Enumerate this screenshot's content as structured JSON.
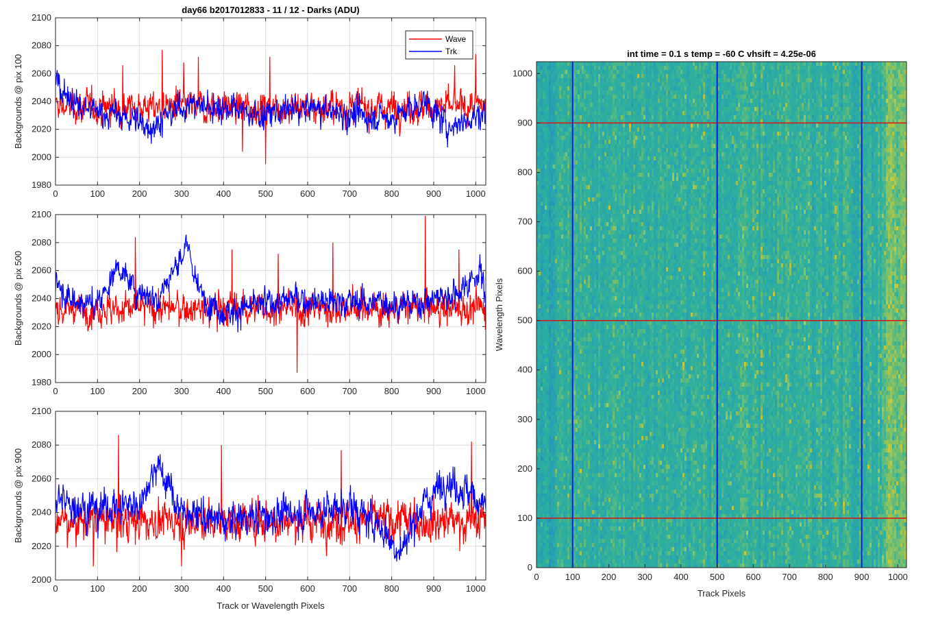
{
  "chart_data": [
    {
      "type": "line",
      "title": "day66 b2017012833 - 11 / 12 - Darks (ADU)",
      "xlabel": "",
      "ylabel": "Backgrounds @ pix 100",
      "xlim": [
        0,
        1024
      ],
      "ylim": [
        1980,
        2100
      ],
      "xticks": [
        0,
        100,
        200,
        300,
        400,
        500,
        600,
        700,
        800,
        900,
        1000
      ],
      "yticks": [
        1980,
        2000,
        2020,
        2040,
        2060,
        2080,
        2100
      ],
      "grid": true,
      "legend": {
        "position": "top-right",
        "entries": [
          "Wave",
          "Trk"
        ]
      },
      "series": [
        {
          "name": "Wave",
          "color": "#ff0000",
          "mean": 2036,
          "noise": 8,
          "spikes": [
            [
              160,
              2066
            ],
            [
              254,
              2077
            ],
            [
              305,
              2068
            ],
            [
              340,
              2072
            ],
            [
              510,
              2072
            ],
            [
              500,
              1995
            ],
            [
              445,
              2004
            ],
            [
              950,
              2066
            ],
            [
              1000,
              2074
            ]
          ]
        },
        {
          "name": "Trk",
          "color": "#0000ff",
          "mean": 2033,
          "noise": 7,
          "trend": [
            [
              0,
              2055
            ],
            [
              60,
              2035
            ],
            [
              150,
              2030
            ],
            [
              230,
              2022
            ],
            [
              310,
              2038
            ],
            [
              400,
              2036
            ],
            [
              480,
              2030
            ],
            [
              560,
              2034
            ],
            [
              620,
              2035
            ],
            [
              700,
              2030
            ],
            [
              800,
              2028
            ],
            [
              880,
              2040
            ],
            [
              930,
              2022
            ],
            [
              1024,
              2032
            ]
          ]
        }
      ]
    },
    {
      "type": "line",
      "xlabel": "",
      "ylabel": "Backgrounds @ pix 500",
      "xlim": [
        0,
        1024
      ],
      "ylim": [
        1980,
        2100
      ],
      "xticks": [
        0,
        100,
        200,
        300,
        400,
        500,
        600,
        700,
        800,
        900,
        1000
      ],
      "yticks": [
        1980,
        2000,
        2020,
        2040,
        2060,
        2080,
        2100
      ],
      "grid": true,
      "series": [
        {
          "name": "Wave",
          "color": "#ff0000",
          "mean": 2033,
          "noise": 8,
          "spikes": [
            [
              190,
              2084
            ],
            [
              880,
              2099
            ],
            [
              575,
              1987
            ],
            [
              660,
              2080
            ],
            [
              960,
              2075
            ],
            [
              420,
              2075
            ],
            [
              530,
              2072
            ]
          ]
        },
        {
          "name": "Trk",
          "color": "#0000ff",
          "mean": 2036,
          "noise": 7,
          "trend": [
            [
              0,
              2055
            ],
            [
              30,
              2040
            ],
            [
              100,
              2035
            ],
            [
              150,
              2065
            ],
            [
              175,
              2050
            ],
            [
              240,
              2040
            ],
            [
              290,
              2065
            ],
            [
              315,
              2078
            ],
            [
              340,
              2045
            ],
            [
              400,
              2030
            ],
            [
              480,
              2035
            ],
            [
              560,
              2040
            ],
            [
              700,
              2038
            ],
            [
              850,
              2036
            ],
            [
              960,
              2045
            ],
            [
              1010,
              2060
            ],
            [
              1024,
              2040
            ]
          ]
        }
      ]
    },
    {
      "type": "line",
      "xlabel": "Track or Wavelength Pixels",
      "ylabel": "Backgrounds @ pix 900",
      "xlim": [
        0,
        1024
      ],
      "ylim": [
        2000,
        2100
      ],
      "xticks": [
        0,
        100,
        200,
        300,
        400,
        500,
        600,
        700,
        800,
        900,
        1000
      ],
      "yticks": [
        2000,
        2020,
        2040,
        2060,
        2080,
        2100
      ],
      "grid": true,
      "series": [
        {
          "name": "Wave",
          "color": "#ff0000",
          "mean": 2035,
          "noise": 8,
          "spikes": [
            [
              150,
              2086
            ],
            [
              395,
              2080
            ],
            [
              680,
              2077
            ],
            [
              990,
              2082
            ],
            [
              90,
              2008
            ],
            [
              300,
              2008
            ]
          ]
        },
        {
          "name": "Trk",
          "color": "#0000ff",
          "mean": 2040,
          "noise": 7,
          "trend": [
            [
              0,
              2048
            ],
            [
              100,
              2042
            ],
            [
              200,
              2045
            ],
            [
              240,
              2070
            ],
            [
              270,
              2055
            ],
            [
              300,
              2040
            ],
            [
              400,
              2035
            ],
            [
              500,
              2038
            ],
            [
              600,
              2040
            ],
            [
              700,
              2044
            ],
            [
              780,
              2030
            ],
            [
              820,
              2015
            ],
            [
              860,
              2040
            ],
            [
              930,
              2060
            ],
            [
              1024,
              2045
            ]
          ]
        }
      ]
    },
    {
      "type": "heatmap",
      "title": "int time = 0.1 s   temp = -60 C   vhsift = 4.25e-06",
      "xlabel": "Track Pixels",
      "ylabel": "Wavelength Pixels",
      "xlim": [
        0,
        1024
      ],
      "ylim": [
        0,
        1024
      ],
      "xticks": [
        0,
        100,
        200,
        300,
        400,
        500,
        600,
        700,
        800,
        900,
        1000
      ],
      "yticks": [
        0,
        100,
        200,
        300,
        400,
        500,
        600,
        700,
        800,
        900,
        1000
      ],
      "colormap": [
        "#2a8ebd",
        "#27a3b0",
        "#31b19a",
        "#7cc06a",
        "#c8c83a"
      ],
      "hlines": {
        "values": [
          100,
          500,
          900
        ],
        "color": "#dd1111"
      },
      "vlines": {
        "values": [
          100,
          500,
          900
        ],
        "color": "#0b1fd6"
      }
    }
  ]
}
